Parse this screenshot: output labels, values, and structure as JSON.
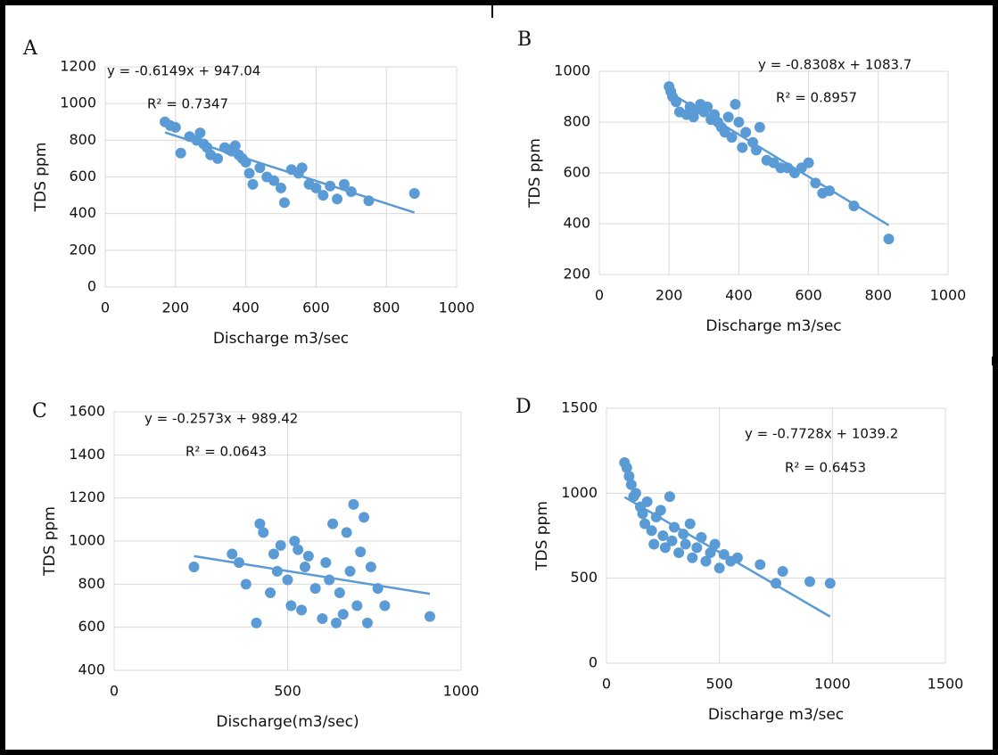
{
  "chart_data": [
    {
      "type": "scatter",
      "panel": "A",
      "color": "#5b9bd5",
      "grid": true,
      "trendline": {
        "slope": -0.6149,
        "intercept": 947.04,
        "label": "y = -0.6149x + 947.04"
      },
      "r2": {
        "value": 0.7347,
        "label": "R² = 0.7347"
      },
      "xlabel": "Discharge m3/sec",
      "ylabel": "TDS ppm",
      "xlim": [
        0,
        1000
      ],
      "ylim": [
        0,
        1200
      ],
      "xticks": [
        0,
        200,
        400,
        600,
        800,
        1000
      ],
      "yticks": [
        0,
        200,
        400,
        600,
        800,
        1000,
        1200
      ],
      "x": [
        170,
        185,
        200,
        215,
        240,
        260,
        270,
        280,
        290,
        300,
        320,
        340,
        350,
        360,
        370,
        380,
        390,
        400,
        410,
        420,
        440,
        460,
        480,
        500,
        510,
        530,
        550,
        560,
        580,
        600,
        620,
        640,
        660,
        680,
        700,
        750,
        880
      ],
      "values": [
        900,
        880,
        870,
        730,
        820,
        800,
        840,
        780,
        760,
        720,
        700,
        760,
        750,
        740,
        770,
        720,
        700,
        680,
        620,
        560,
        650,
        600,
        580,
        540,
        460,
        640,
        620,
        650,
        560,
        540,
        500,
        550,
        480,
        560,
        520,
        470,
        510
      ]
    },
    {
      "type": "scatter",
      "panel": "B",
      "color": "#5b9bd5",
      "grid": true,
      "trendline": {
        "slope": -0.8308,
        "intercept": 1083.7,
        "label": "y = -0.8308x + 1083.7"
      },
      "r2": {
        "value": 0.8957,
        "label": "R² = 0.8957"
      },
      "xlabel": "Discharge m3/sec",
      "ylabel": "TDS ppm",
      "xlim": [
        0,
        1000
      ],
      "ylim": [
        200,
        1000
      ],
      "xticks": [
        0,
        200,
        400,
        600,
        800,
        1000
      ],
      "yticks": [
        200,
        400,
        600,
        800,
        1000
      ],
      "x": [
        200,
        205,
        210,
        220,
        230,
        250,
        260,
        270,
        280,
        290,
        300,
        310,
        320,
        330,
        340,
        350,
        360,
        370,
        380,
        390,
        400,
        410,
        420,
        440,
        450,
        460,
        480,
        500,
        520,
        540,
        560,
        580,
        600,
        620,
        640,
        660,
        730,
        830
      ],
      "values": [
        940,
        920,
        900,
        880,
        840,
        830,
        860,
        820,
        850,
        870,
        840,
        860,
        810,
        830,
        800,
        780,
        760,
        820,
        740,
        870,
        800,
        700,
        760,
        720,
        690,
        780,
        650,
        640,
        620,
        620,
        600,
        620,
        640,
        560,
        520,
        530,
        470,
        340
      ]
    },
    {
      "type": "scatter",
      "panel": "C",
      "color": "#5b9bd5",
      "grid": true,
      "trendline": {
        "slope": -0.2573,
        "intercept": 989.42,
        "label": "y = -0.2573x + 989.42"
      },
      "r2": {
        "value": 0.0643,
        "label": "R² = 0.0643"
      },
      "xlabel": "Discharge(m3/sec)",
      "ylabel": "TDS ppm",
      "xlim": [
        0,
        1000
      ],
      "ylim": [
        400,
        1600
      ],
      "xticks": [
        0,
        500,
        1000
      ],
      "yticks": [
        400,
        600,
        800,
        1000,
        1200,
        1400,
        1600
      ],
      "x": [
        230,
        340,
        360,
        380,
        410,
        420,
        430,
        450,
        460,
        470,
        480,
        500,
        510,
        520,
        530,
        540,
        550,
        560,
        580,
        600,
        610,
        620,
        630,
        640,
        650,
        660,
        670,
        680,
        690,
        700,
        710,
        720,
        730,
        740,
        760,
        780,
        910
      ],
      "values": [
        880,
        940,
        900,
        800,
        620,
        1080,
        1040,
        760,
        940,
        860,
        980,
        820,
        700,
        1000,
        960,
        680,
        880,
        930,
        780,
        640,
        900,
        820,
        1080,
        620,
        760,
        660,
        1040,
        860,
        1170,
        700,
        950,
        1110,
        620,
        880,
        780,
        700,
        650
      ]
    },
    {
      "type": "scatter",
      "panel": "D",
      "color": "#5b9bd5",
      "grid": true,
      "trendline": {
        "slope": -0.7728,
        "intercept": 1039.2,
        "label": "y = -0.7728x + 1039.2"
      },
      "r2": {
        "value": 0.6453,
        "label": "R² = 0.6453"
      },
      "xlabel": "Discharge m3/sec",
      "ylabel": "TDS ppm",
      "xlim": [
        0,
        1500
      ],
      "ylim": [
        0,
        1500
      ],
      "xticks": [
        0,
        500,
        1000,
        1500
      ],
      "yticks": [
        0,
        500,
        1000,
        1500
      ],
      "x": [
        80,
        90,
        100,
        110,
        120,
        130,
        150,
        160,
        170,
        180,
        200,
        210,
        220,
        240,
        250,
        260,
        280,
        290,
        300,
        320,
        340,
        350,
        370,
        380,
        400,
        420,
        440,
        460,
        480,
        500,
        520,
        550,
        580,
        680,
        750,
        780,
        900,
        990
      ],
      "values": [
        1180,
        1150,
        1100,
        1050,
        980,
        1000,
        920,
        880,
        820,
        950,
        780,
        700,
        860,
        900,
        750,
        680,
        980,
        720,
        800,
        650,
        760,
        700,
        820,
        620,
        680,
        740,
        600,
        650,
        700,
        560,
        640,
        600,
        620,
        580,
        470,
        540,
        480,
        470
      ]
    }
  ]
}
